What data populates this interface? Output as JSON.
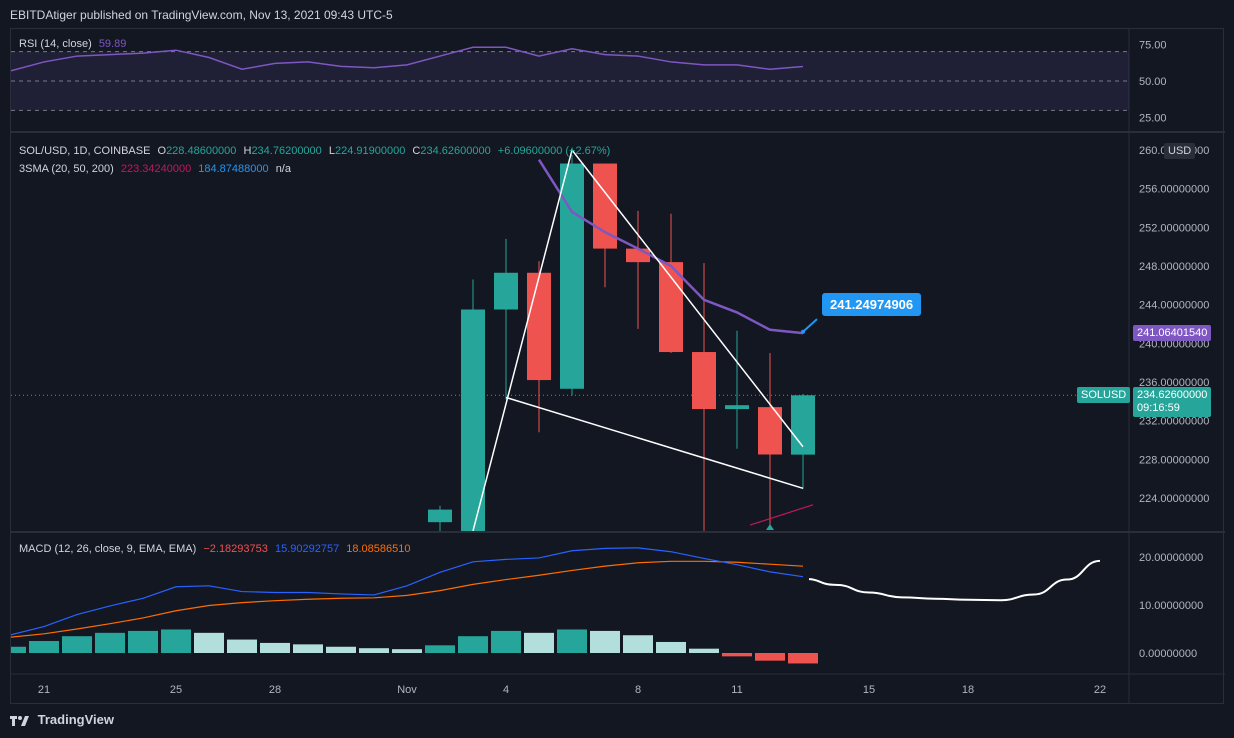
{
  "header": {
    "publisher_text": "EBITDAtiger published on TradingView.com, Nov 13, 2021 09:43 UTC-5"
  },
  "footer": {
    "brand": "TradingView"
  },
  "colors": {
    "up": "#26a69a",
    "down": "#ef5350",
    "sma": "#7e57c2",
    "rsi": "#7e57c2",
    "macd": "#2962ff",
    "signal": "#ff6d00",
    "hist_up_strong": "#26a69a",
    "hist_up_weak": "#b2dfdb",
    "hist_down": "#ef5350",
    "callout": "#2196f3"
  },
  "rsi_panel": {
    "legend_name": "RSI (14, close)",
    "legend_value": "59.89",
    "ticks": [
      "75.00",
      "50.00",
      "25.00"
    ]
  },
  "price_panel": {
    "legend_main": "SOL/USD, 1D, COINBASE",
    "legend_o_label": "O",
    "legend_o": "228.48600000",
    "legend_h_label": "H",
    "legend_h": "234.76200000",
    "legend_l_label": "L",
    "legend_l": "224.91900000",
    "legend_c_label": "C",
    "legend_c": "234.62600000",
    "legend_change": "+6.09600000 (+2.67%)",
    "sma_name": "3SMA (20, 50, 200)",
    "sma_v1": "223.34240000",
    "sma_v2": "184.87488000",
    "sma_v3": "n/a",
    "currency": "USD",
    "ticks": [
      "260.00000000",
      "256.00000000",
      "252.00000000",
      "248.00000000",
      "244.00000000",
      "240.00000000",
      "236.00000000",
      "232.00000000",
      "228.00000000",
      "224.00000000"
    ],
    "sma_label": "241.06401540",
    "symbol_label": "SOLUSD",
    "last_price_label": "234.62600000",
    "countdown": "09:16:59",
    "callout": "241.24974906"
  },
  "macd_panel": {
    "legend_name": "MACD (12, 26, close, 9, EMA, EMA)",
    "hist_value": "−2.18293753",
    "macd_value": "15.90292757",
    "signal_value": "18.08586510",
    "ticks": [
      "20.00000000",
      "10.00000000",
      "0.00000000"
    ]
  },
  "time_axis": {
    "labels": [
      "21",
      "25",
      "28",
      "Nov",
      "4",
      "8",
      "11",
      "15",
      "18",
      "22"
    ]
  },
  "chart_data": {
    "type": "candlestick",
    "candles": [
      {
        "x": "Nov 2",
        "o": 221.5,
        "h": 223.2,
        "l": 219.0,
        "c": 222.8
      },
      {
        "x": "Nov 3",
        "o": 220.5,
        "h": 246.6,
        "l": 219.0,
        "c": 243.5
      },
      {
        "x": "Nov 4",
        "o": 243.5,
        "h": 250.8,
        "l": 234.2,
        "c": 247.3
      },
      {
        "x": "Nov 5",
        "o": 247.3,
        "h": 248.5,
        "l": 230.8,
        "c": 236.2
      },
      {
        "x": "Nov 6",
        "o": 235.3,
        "h": 259.5,
        "l": 234.6,
        "c": 258.6
      },
      {
        "x": "Nov 7",
        "o": 258.6,
        "h": 258.6,
        "l": 245.8,
        "c": 249.8
      },
      {
        "x": "Nov 8",
        "o": 249.8,
        "h": 253.7,
        "l": 241.5,
        "c": 248.4
      },
      {
        "x": "Nov 9",
        "o": 248.4,
        "h": 253.4,
        "l": 239.0,
        "c": 239.1
      },
      {
        "x": "Nov 10",
        "o": 239.1,
        "h": 248.3,
        "l": 220.6,
        "c": 233.2
      },
      {
        "x": "Nov 11",
        "o": 233.2,
        "h": 241.3,
        "l": 229.1,
        "c": 233.6
      },
      {
        "x": "Nov 12",
        "o": 233.4,
        "h": 239.0,
        "l": 221.0,
        "c": 228.5
      },
      {
        "x": "Nov 13",
        "o": 228.486,
        "h": 234.762,
        "l": 224.919,
        "c": 234.626
      }
    ],
    "sma_line": [
      {
        "x": "Nov 5",
        "y": 259.0
      },
      {
        "x": "Nov 6",
        "y": 253.6
      },
      {
        "x": "Nov 7",
        "y": 251.5
      },
      {
        "x": "Nov 8",
        "y": 249.8
      },
      {
        "x": "Nov 9",
        "y": 248.0
      },
      {
        "x": "Nov 10",
        "y": 244.5
      },
      {
        "x": "Nov 11",
        "y": 243.2
      },
      {
        "x": "Nov 12",
        "y": 241.4
      },
      {
        "x": "Nov 13",
        "y": 241.06
      }
    ],
    "drawn_pattern": [
      {
        "x": "Nov 3",
        "y": 220.6
      },
      {
        "x": "Nov 6",
        "y": 260.0
      },
      {
        "x": "Nov 13",
        "y": 229.3
      },
      {
        "x": "Nov 4",
        "y": 234.4
      },
      {
        "x": "Nov 13",
        "y": 225.0
      }
    ],
    "rsi": [
      {
        "x": "Oct 20",
        "y": 57
      },
      {
        "x": "Oct 21",
        "y": 63
      },
      {
        "x": "Oct 22",
        "y": 67
      },
      {
        "x": "Oct 23",
        "y": 68
      },
      {
        "x": "Oct 24",
        "y": 69
      },
      {
        "x": "Oct 25",
        "y": 71
      },
      {
        "x": "Oct 26",
        "y": 66
      },
      {
        "x": "Oct 27",
        "y": 58
      },
      {
        "x": "Oct 28",
        "y": 62
      },
      {
        "x": "Oct 29",
        "y": 63
      },
      {
        "x": "Oct 30",
        "y": 60
      },
      {
        "x": "Oct 31",
        "y": 59
      },
      {
        "x": "Nov 1",
        "y": 61
      },
      {
        "x": "Nov 2",
        "y": 67
      },
      {
        "x": "Nov 3",
        "y": 73
      },
      {
        "x": "Nov 4",
        "y": 73
      },
      {
        "x": "Nov 5",
        "y": 67
      },
      {
        "x": "Nov 6",
        "y": 72
      },
      {
        "x": "Nov 7",
        "y": 68
      },
      {
        "x": "Nov 8",
        "y": 67
      },
      {
        "x": "Nov 9",
        "y": 63
      },
      {
        "x": "Nov 10",
        "y": 61
      },
      {
        "x": "Nov 11",
        "y": 61
      },
      {
        "x": "Nov 12",
        "y": 58
      },
      {
        "x": "Nov 13",
        "y": 59.89
      }
    ],
    "macd": [
      {
        "x": "Oct 20",
        "y": 3.8
      },
      {
        "x": "Oct 21",
        "y": 5.5
      },
      {
        "x": "Oct 22",
        "y": 8.0
      },
      {
        "x": "Oct 23",
        "y": 9.8
      },
      {
        "x": "Oct 24",
        "y": 11.4
      },
      {
        "x": "Oct 25",
        "y": 13.8
      },
      {
        "x": "Oct 26",
        "y": 14.0
      },
      {
        "x": "Oct 27",
        "y": 12.8
      },
      {
        "x": "Oct 28",
        "y": 12.6
      },
      {
        "x": "Oct 29",
        "y": 12.6
      },
      {
        "x": "Oct 30",
        "y": 12.3
      },
      {
        "x": "Oct 31",
        "y": 12.1
      },
      {
        "x": "Nov 1",
        "y": 14.0
      },
      {
        "x": "Nov 2",
        "y": 16.8
      },
      {
        "x": "Nov 3",
        "y": 19.0
      },
      {
        "x": "Nov 4",
        "y": 19.5
      },
      {
        "x": "Nov 5",
        "y": 19.8
      },
      {
        "x": "Nov 6",
        "y": 21.3
      },
      {
        "x": "Nov 7",
        "y": 21.8
      },
      {
        "x": "Nov 8",
        "y": 21.9
      },
      {
        "x": "Nov 9",
        "y": 21.1
      },
      {
        "x": "Nov 10",
        "y": 19.7
      },
      {
        "x": "Nov 11",
        "y": 18.4
      },
      {
        "x": "Nov 12",
        "y": 16.9
      },
      {
        "x": "Nov 13",
        "y": 15.9
      }
    ],
    "signal": [
      {
        "x": "Oct 20",
        "y": 3.3
      },
      {
        "x": "Oct 21",
        "y": 4.0
      },
      {
        "x": "Oct 22",
        "y": 5.0
      },
      {
        "x": "Oct 23",
        "y": 6.1
      },
      {
        "x": "Oct 24",
        "y": 7.3
      },
      {
        "x": "Oct 25",
        "y": 8.8
      },
      {
        "x": "Oct 26",
        "y": 9.9
      },
      {
        "x": "Oct 27",
        "y": 10.5
      },
      {
        "x": "Oct 28",
        "y": 10.9
      },
      {
        "x": "Oct 29",
        "y": 11.2
      },
      {
        "x": "Oct 30",
        "y": 11.4
      },
      {
        "x": "Oct 31",
        "y": 11.5
      },
      {
        "x": "Nov 1",
        "y": 12.0
      },
      {
        "x": "Nov 2",
        "y": 13.0
      },
      {
        "x": "Nov 3",
        "y": 14.3
      },
      {
        "x": "Nov 4",
        "y": 15.3
      },
      {
        "x": "Nov 5",
        "y": 16.2
      },
      {
        "x": "Nov 6",
        "y": 17.2
      },
      {
        "x": "Nov 7",
        "y": 18.1
      },
      {
        "x": "Nov 8",
        "y": 18.8
      },
      {
        "x": "Nov 9",
        "y": 19.1
      },
      {
        "x": "Nov 10",
        "y": 19.1
      },
      {
        "x": "Nov 11",
        "y": 18.9
      },
      {
        "x": "Nov 12",
        "y": 18.5
      },
      {
        "x": "Nov 13",
        "y": 18.09
      }
    ],
    "histogram": [
      {
        "x": "Oct 20",
        "y": 1.3
      },
      {
        "x": "Oct 21",
        "y": 2.5
      },
      {
        "x": "Oct 22",
        "y": 3.5
      },
      {
        "x": "Oct 23",
        "y": 4.2
      },
      {
        "x": "Oct 24",
        "y": 4.6
      },
      {
        "x": "Oct 25",
        "y": 4.9
      },
      {
        "x": "Oct 26",
        "y": 4.2
      },
      {
        "x": "Oct 27",
        "y": 2.8
      },
      {
        "x": "Oct 28",
        "y": 2.1
      },
      {
        "x": "Oct 29",
        "y": 1.8
      },
      {
        "x": "Oct 30",
        "y": 1.3
      },
      {
        "x": "Oct 31",
        "y": 1.0
      },
      {
        "x": "Nov 1",
        "y": 0.8
      },
      {
        "x": "Nov 2",
        "y": 1.6
      },
      {
        "x": "Nov 3",
        "y": 3.5
      },
      {
        "x": "Nov 4",
        "y": 4.6
      },
      {
        "x": "Nov 5",
        "y": 4.2
      },
      {
        "x": "Nov 6",
        "y": 4.9
      },
      {
        "x": "Nov 7",
        "y": 4.6
      },
      {
        "x": "Nov 8",
        "y": 3.7
      },
      {
        "x": "Nov 9",
        "y": 2.3
      },
      {
        "x": "Nov 10",
        "y": 0.9
      },
      {
        "x": "Nov 11",
        "y": -0.7
      },
      {
        "x": "Nov 12",
        "y": -1.6
      },
      {
        "x": "Nov 13",
        "y": -2.18
      }
    ],
    "macd_projection": [
      {
        "x": "Nov 13",
        "y": 15.4
      },
      {
        "x": "Nov 14",
        "y": 14.2
      },
      {
        "x": "Nov 15",
        "y": 12.6
      },
      {
        "x": "Nov 16",
        "y": 11.6
      },
      {
        "x": "Nov 17",
        "y": 11.3
      },
      {
        "x": "Nov 18",
        "y": 11.1
      },
      {
        "x": "Nov 19",
        "y": 11.0
      },
      {
        "x": "Nov 20",
        "y": 12.2
      },
      {
        "x": "Nov 21",
        "y": 15.3
      },
      {
        "x": "Nov 22",
        "y": 19.2
      }
    ]
  }
}
